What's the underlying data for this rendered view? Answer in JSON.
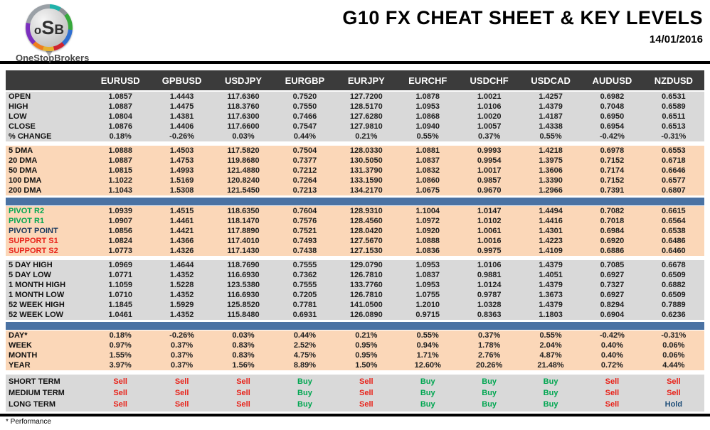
{
  "header": {
    "logo": {
      "letters": [
        "o",
        "S",
        "B"
      ],
      "brand": "OneStopBrokers"
    },
    "title": "G10 FX CHEAT SHEET & KEY LEVELS",
    "date": "14/01/2016"
  },
  "colors": {
    "header_row_bg": "#3b3b3b",
    "section_gray": "#d9d9d9",
    "section_peach": "#fbd7b8",
    "divider_blue": "#4a72a3",
    "pivot_green": "#00a651",
    "pivot_navy": "#17375d",
    "support_red": "#e8231a",
    "buy_green": "#00a651",
    "sell_red": "#e8231a",
    "hold_navy": "#1f4e79"
  },
  "table": {
    "columns": [
      "EURUSD",
      "GPBUSD",
      "USDJPY",
      "EURGBP",
      "EURJPY",
      "EURCHF",
      "USDCHF",
      "USDCAD",
      "AUDUSD",
      "NZDUSD"
    ],
    "sections": [
      {
        "name": "ohlc",
        "theme": "gray",
        "rows": [
          {
            "label": "OPEN",
            "values": [
              "1.0857",
              "1.4443",
              "117.6360",
              "0.7520",
              "127.7200",
              "1.0878",
              "1.0021",
              "1.4257",
              "0.6982",
              "0.6531"
            ]
          },
          {
            "label": "HIGH",
            "values": [
              "1.0887",
              "1.4475",
              "118.3760",
              "0.7550",
              "128.5170",
              "1.0953",
              "1.0106",
              "1.4379",
              "0.7048",
              "0.6589"
            ]
          },
          {
            "label": "LOW",
            "values": [
              "1.0804",
              "1.4381",
              "117.6300",
              "0.7466",
              "127.6280",
              "1.0868",
              "1.0020",
              "1.4187",
              "0.6950",
              "0.6511"
            ]
          },
          {
            "label": "CLOSE",
            "values": [
              "1.0876",
              "1.4406",
              "117.6600",
              "0.7547",
              "127.9810",
              "1.0940",
              "1.0057",
              "1.4338",
              "0.6954",
              "0.6513"
            ]
          },
          {
            "label": "% CHANGE",
            "values": [
              "0.18%",
              "-0.26%",
              "0.03%",
              "0.44%",
              "0.21%",
              "0.55%",
              "0.37%",
              "0.55%",
              "-0.42%",
              "-0.31%"
            ]
          }
        ]
      },
      {
        "name": "dma",
        "theme": "peach",
        "rows": [
          {
            "label": "5 DMA",
            "values": [
              "1.0888",
              "1.4503",
              "117.5820",
              "0.7504",
              "128.0330",
              "1.0881",
              "0.9993",
              "1.4218",
              "0.6978",
              "0.6553"
            ]
          },
          {
            "label": "20 DMA",
            "values": [
              "1.0887",
              "1.4753",
              "119.8680",
              "0.7377",
              "130.5050",
              "1.0837",
              "0.9954",
              "1.3975",
              "0.7152",
              "0.6718"
            ]
          },
          {
            "label": "50 DMA",
            "values": [
              "1.0815",
              "1.4993",
              "121.4880",
              "0.7212",
              "131.3790",
              "1.0832",
              "1.0017",
              "1.3606",
              "0.7174",
              "0.6646"
            ]
          },
          {
            "label": "100 DMA",
            "values": [
              "1.1022",
              "1.5169",
              "120.8240",
              "0.7264",
              "133.1590",
              "1.0860",
              "0.9857",
              "1.3390",
              "0.7152",
              "0.6577"
            ]
          },
          {
            "label": "200 DMA",
            "values": [
              "1.1043",
              "1.5308",
              "121.5450",
              "0.7213",
              "134.2170",
              "1.0675",
              "0.9670",
              "1.2966",
              "0.7391",
              "0.6807"
            ]
          }
        ]
      },
      {
        "name": "pivots",
        "theme": "peach",
        "rows": [
          {
            "label": "PIVOT R2",
            "color": "green",
            "values": [
              "1.0939",
              "1.4515",
              "118.6350",
              "0.7604",
              "128.9310",
              "1.1004",
              "1.0147",
              "1.4494",
              "0.7082",
              "0.6615"
            ]
          },
          {
            "label": "PIVOT R1",
            "color": "green",
            "values": [
              "1.0907",
              "1.4461",
              "118.1470",
              "0.7576",
              "128.4560",
              "1.0972",
              "1.0102",
              "1.4416",
              "0.7018",
              "0.6564"
            ]
          },
          {
            "label": "PIVOT POINT",
            "color": "navy",
            "values": [
              "1.0856",
              "1.4421",
              "117.8890",
              "0.7521",
              "128.0420",
              "1.0920",
              "1.0061",
              "1.4301",
              "0.6984",
              "0.6538"
            ]
          },
          {
            "label": "SUPPORT S1",
            "color": "red",
            "values": [
              "1.0824",
              "1.4366",
              "117.4010",
              "0.7493",
              "127.5670",
              "1.0888",
              "1.0016",
              "1.4223",
              "0.6920",
              "0.6486"
            ]
          },
          {
            "label": "SUPPORT S2",
            "color": "red",
            "values": [
              "1.0773",
              "1.4326",
              "117.1430",
              "0.7438",
              "127.1530",
              "1.0836",
              "0.9975",
              "1.4109",
              "0.6886",
              "0.6460"
            ]
          }
        ]
      },
      {
        "name": "ranges",
        "theme": "gray",
        "rows": [
          {
            "label": "5 DAY HIGH",
            "values": [
              "1.0969",
              "1.4644",
              "118.7690",
              "0.7555",
              "129.0790",
              "1.0953",
              "1.0106",
              "1.4379",
              "0.7085",
              "0.6678"
            ]
          },
          {
            "label": "5 DAY LOW",
            "values": [
              "1.0771",
              "1.4352",
              "116.6930",
              "0.7362",
              "126.7810",
              "1.0837",
              "0.9881",
              "1.4051",
              "0.6927",
              "0.6509"
            ]
          },
          {
            "label": "1 MONTH HIGH",
            "values": [
              "1.1059",
              "1.5228",
              "123.5380",
              "0.7555",
              "133.7760",
              "1.0953",
              "1.0124",
              "1.4379",
              "0.7327",
              "0.6882"
            ]
          },
          {
            "label": "1 MONTH LOW",
            "values": [
              "1.0710",
              "1.4352",
              "116.6930",
              "0.7205",
              "126.7810",
              "1.0755",
              "0.9787",
              "1.3673",
              "0.6927",
              "0.6509"
            ]
          },
          {
            "label": "52 WEEK HIGH",
            "values": [
              "1.1845",
              "1.5929",
              "125.8520",
              "0.7781",
              "141.0500",
              "1.2010",
              "1.0328",
              "1.4379",
              "0.8294",
              "0.7889"
            ]
          },
          {
            "label": "52 WEEK LOW",
            "values": [
              "1.0461",
              "1.4352",
              "115.8480",
              "0.6931",
              "126.0890",
              "0.9715",
              "0.8363",
              "1.1803",
              "0.6904",
              "0.6236"
            ]
          }
        ]
      },
      {
        "name": "performance",
        "theme": "peach",
        "rows": [
          {
            "label": "DAY*",
            "values": [
              "0.18%",
              "-0.26%",
              "0.03%",
              "0.44%",
              "0.21%",
              "0.55%",
              "0.37%",
              "0.55%",
              "-0.42%",
              "-0.31%"
            ]
          },
          {
            "label": "WEEK",
            "values": [
              "0.97%",
              "0.37%",
              "0.83%",
              "2.52%",
              "0.95%",
              "0.94%",
              "1.78%",
              "2.04%",
              "0.40%",
              "0.06%"
            ]
          },
          {
            "label": "MONTH",
            "values": [
              "1.55%",
              "0.37%",
              "0.83%",
              "4.75%",
              "0.95%",
              "1.71%",
              "2.76%",
              "4.87%",
              "0.40%",
              "0.06%"
            ]
          },
          {
            "label": "YEAR",
            "values": [
              "3.97%",
              "0.37%",
              "1.56%",
              "8.89%",
              "1.50%",
              "12.60%",
              "20.26%",
              "21.48%",
              "0.72%",
              "4.44%"
            ]
          }
        ]
      },
      {
        "name": "signals",
        "theme": "gray",
        "signal": true,
        "rows": [
          {
            "label": "SHORT TERM",
            "values": [
              "Sell",
              "Sell",
              "Sell",
              "Buy",
              "Sell",
              "Buy",
              "Buy",
              "Buy",
              "Sell",
              "Sell"
            ]
          },
          {
            "label": "MEDIUM TERM",
            "values": [
              "Sell",
              "Sell",
              "Sell",
              "Buy",
              "Sell",
              "Buy",
              "Buy",
              "Buy",
              "Sell",
              "Sell"
            ]
          },
          {
            "label": "LONG TERM",
            "values": [
              "Sell",
              "Sell",
              "Sell",
              "Buy",
              "Sell",
              "Buy",
              "Buy",
              "Buy",
              "Sell",
              "Hold"
            ]
          }
        ]
      }
    ]
  },
  "footnote": "* Performance"
}
